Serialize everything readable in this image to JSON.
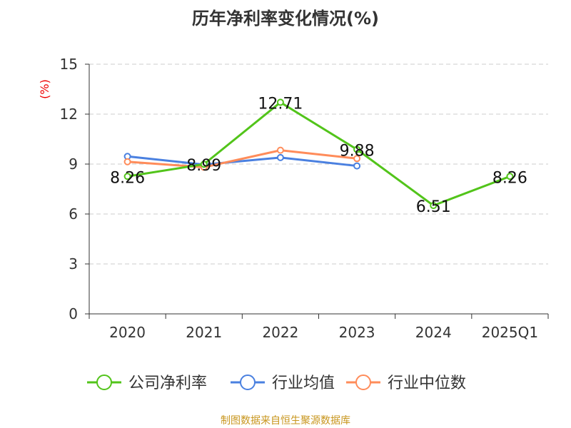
{
  "chart_data": {
    "type": "line",
    "title": "历年净利率变化情况(%)",
    "ylabel": "(%)",
    "xlabel": "",
    "ylim": [
      0,
      15
    ],
    "yticks": [
      "0",
      "3",
      "6",
      "9",
      "12",
      "15"
    ],
    "categories": [
      "2020",
      "2021",
      "2022",
      "2023",
      "2024",
      "2025Q1"
    ],
    "grid": true,
    "legend_position": "bottom",
    "series": [
      {
        "name": "公司净利率",
        "color": "#52c41a",
        "values": [
          8.26,
          8.99,
          12.71,
          9.88,
          6.51,
          8.26
        ],
        "labels": [
          "8.26",
          "8.99",
          "12.71",
          "9.88",
          "6.51",
          "8.26"
        ]
      },
      {
        "name": "行业均值",
        "color": "#4a80e0",
        "values": [
          9.46,
          8.97,
          9.39,
          8.89,
          null,
          null
        ]
      },
      {
        "name": "行业中位数",
        "color": "#ff8c5a",
        "values": [
          9.14,
          8.81,
          9.83,
          9.33,
          null,
          null
        ]
      }
    ]
  },
  "source": "制图数据来自恒生聚源数据库"
}
